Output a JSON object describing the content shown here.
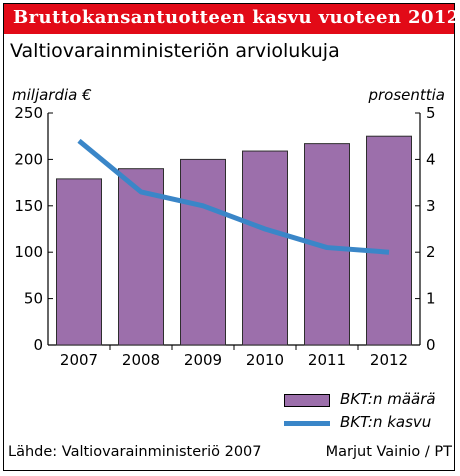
{
  "header": {
    "title": "Bruttokansantuotteen kasvu vuoteen 2012",
    "subtitle": "Valtiovarainministeriön arviolukuja"
  },
  "colors": {
    "title_bg": "#e20a17",
    "bar_fill": "#9c6fab",
    "bar_stroke": "#2e2e2e",
    "line": "#3a86c8"
  },
  "chart_data": {
    "type": "bar",
    "categories": [
      "2007",
      "2008",
      "2009",
      "2010",
      "2011",
      "2012"
    ],
    "series": [
      {
        "name": "BKT:n määrä",
        "type": "bar",
        "axis": "left",
        "values": [
          179,
          190,
          200,
          209,
          217,
          225
        ]
      },
      {
        "name": "BKT:n kasvu",
        "type": "line",
        "axis": "right",
        "values": [
          4.4,
          3.3,
          3.0,
          2.5,
          2.1,
          2.0
        ]
      }
    ],
    "y_left": {
      "label": "miljardia €",
      "min": 0,
      "max": 250,
      "ticks": [
        "0",
        "50",
        "100",
        "150",
        "200",
        "250"
      ]
    },
    "y_right": {
      "label": "prosenttia",
      "min": 0,
      "max": 5,
      "ticks": [
        "0",
        "1",
        "2",
        "3",
        "4",
        "5"
      ]
    },
    "grid": false,
    "legend_position": "bottom-right"
  },
  "footer": {
    "source": "Lähde: Valtiovarainministeriö 2007",
    "credit": "Marjut Vainio / PT"
  }
}
